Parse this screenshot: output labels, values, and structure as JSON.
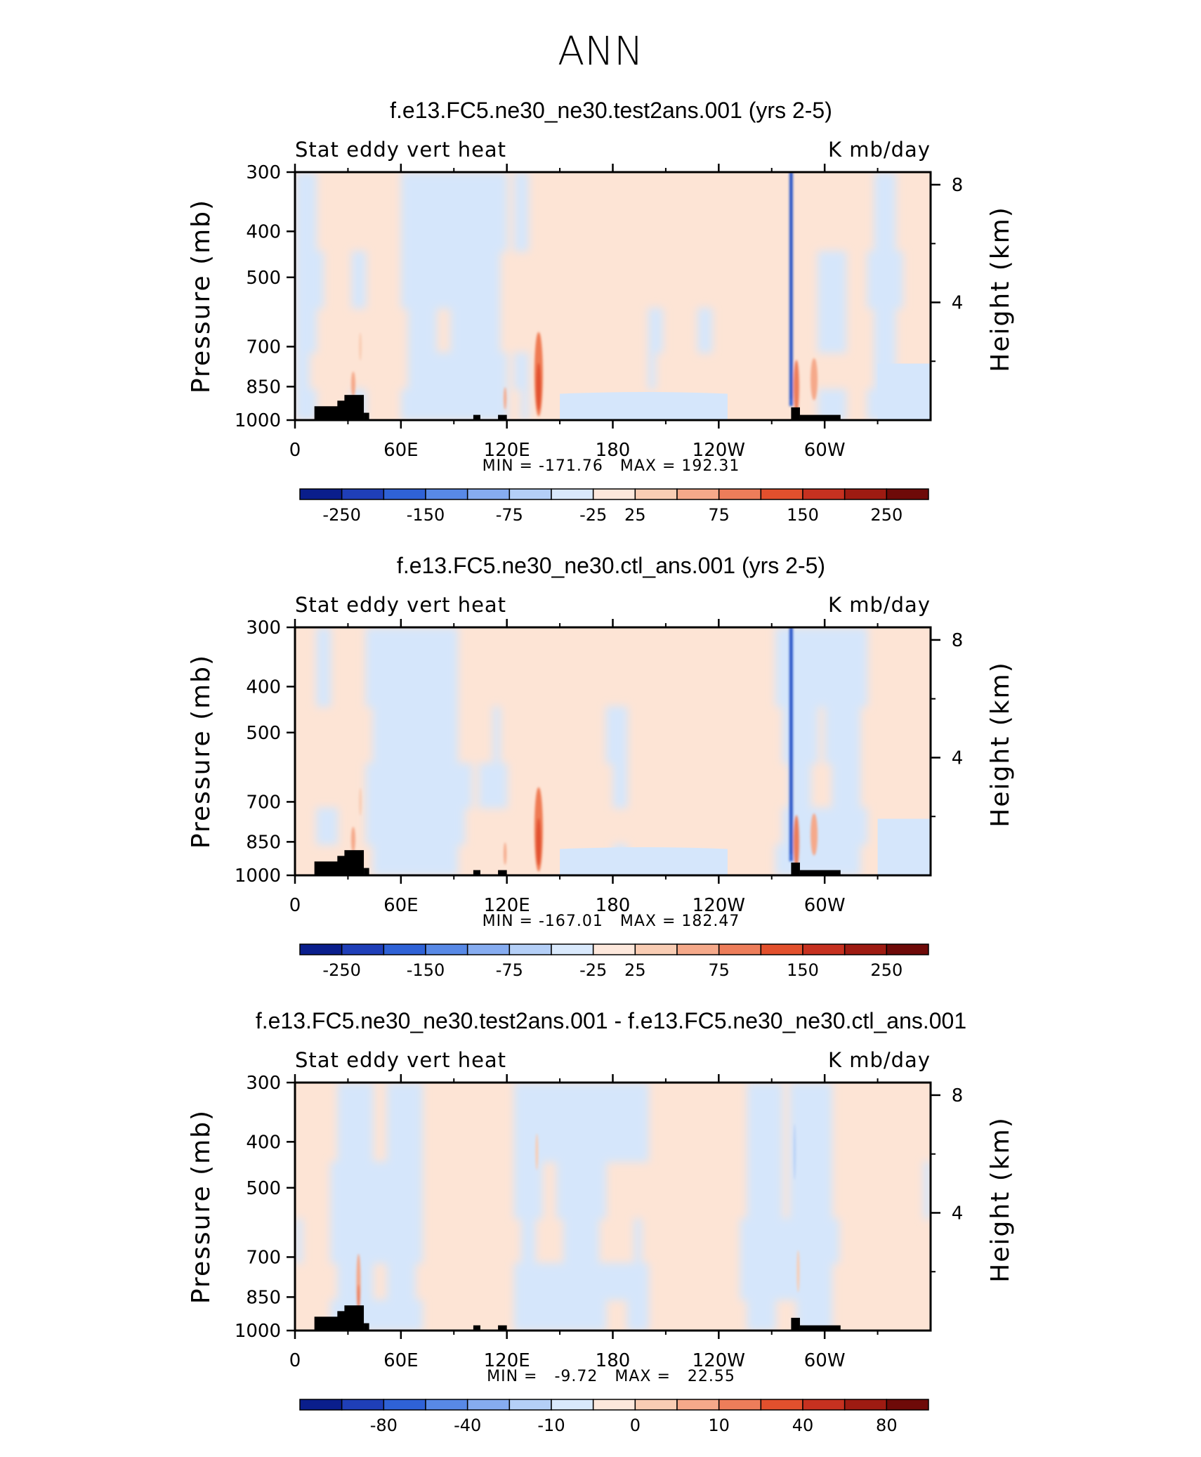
{
  "figure_title": "ANN",
  "chart_data": [
    {
      "type": "heatmap",
      "title": "f.e13.FC5.ne30_ne30.test2ans.001 (yrs 2-5)",
      "left_label": "Stat eddy vert heat",
      "right_label": "K mb/day",
      "ylabel": "Pressure (mb)",
      "ylabel_right": "Height (km)",
      "x_ticks": [
        "0",
        "60E",
        "120E",
        "180",
        "120W",
        "60W"
      ],
      "x_tick_values": [
        0,
        60,
        120,
        180,
        240,
        300
      ],
      "xlim": [
        0,
        360
      ],
      "y_ticks": [
        "300",
        "400",
        "500",
        "700",
        "850",
        "1000"
      ],
      "y_tick_values": [
        300,
        400,
        500,
        700,
        850,
        1000
      ],
      "ylim": [
        1000,
        300
      ],
      "height_ticks": [
        "8",
        "4"
      ],
      "height_tick_values": [
        8,
        4
      ],
      "stats": "MIN = -171.76   MAX = 192.31",
      "min": -171.76,
      "max": 192.31,
      "colorbar": {
        "levels": [
          "-250",
          "-150",
          "-75",
          "-25",
          "25",
          "75",
          "150",
          "250"
        ],
        "colors": [
          "#0a1e8c",
          "#1f3fb8",
          "#2f62d6",
          "#5889e6",
          "#86acf0",
          "#b4cff7",
          "#d9e9fc",
          "#fde8dc",
          "#f9cdb4",
          "#f5a98a",
          "#ed7d5a",
          "#e2502d",
          "#c63120",
          "#9e1b12",
          "#6e0a08"
        ]
      }
    },
    {
      "type": "heatmap",
      "title": "f.e13.FC5.ne30_ne30.ctl_ans.001 (yrs 2-5)",
      "left_label": "Stat eddy vert heat",
      "right_label": "K mb/day",
      "ylabel": "Pressure (mb)",
      "ylabel_right": "Height (km)",
      "x_ticks": [
        "0",
        "60E",
        "120E",
        "180",
        "120W",
        "60W"
      ],
      "x_tick_values": [
        0,
        60,
        120,
        180,
        240,
        300
      ],
      "xlim": [
        0,
        360
      ],
      "y_ticks": [
        "300",
        "400",
        "500",
        "700",
        "850",
        "1000"
      ],
      "y_tick_values": [
        300,
        400,
        500,
        700,
        850,
        1000
      ],
      "ylim": [
        1000,
        300
      ],
      "height_ticks": [
        "8",
        "4"
      ],
      "height_tick_values": [
        8,
        4
      ],
      "stats": "MIN = -167.01   MAX = 182.47",
      "min": -167.01,
      "max": 182.47,
      "colorbar": {
        "levels": [
          "-250",
          "-150",
          "-75",
          "-25",
          "25",
          "75",
          "150",
          "250"
        ],
        "colors": [
          "#0a1e8c",
          "#1f3fb8",
          "#2f62d6",
          "#5889e6",
          "#86acf0",
          "#b4cff7",
          "#d9e9fc",
          "#fde8dc",
          "#f9cdb4",
          "#f5a98a",
          "#ed7d5a",
          "#e2502d",
          "#c63120",
          "#9e1b12",
          "#6e0a08"
        ]
      }
    },
    {
      "type": "heatmap",
      "title": "f.e13.FC5.ne30_ne30.test2ans.001 - f.e13.FC5.ne30_ne30.ctl_ans.001",
      "left_label": "Stat eddy vert heat",
      "right_label": "K mb/day",
      "ylabel": "Pressure (mb)",
      "ylabel_right": "Height (km)",
      "x_ticks": [
        "0",
        "60E",
        "120E",
        "180",
        "120W",
        "60W"
      ],
      "x_tick_values": [
        0,
        60,
        120,
        180,
        240,
        300
      ],
      "xlim": [
        0,
        360
      ],
      "y_ticks": [
        "300",
        "400",
        "500",
        "700",
        "850",
        "1000"
      ],
      "y_tick_values": [
        300,
        400,
        500,
        700,
        850,
        1000
      ],
      "ylim": [
        1000,
        300
      ],
      "height_ticks": [
        "8",
        "4"
      ],
      "height_tick_values": [
        8,
        4
      ],
      "stats": "MIN =   -9.72   MAX =   22.55",
      "min": -9.72,
      "max": 22.55,
      "colorbar": {
        "levels": [
          "-80",
          "-40",
          "-10",
          "0",
          "10",
          "40",
          "80"
        ],
        "colors": [
          "#0a1e8c",
          "#1f3fb8",
          "#2f62d6",
          "#5889e6",
          "#86acf0",
          "#b4cff7",
          "#d9e9fc",
          "#fde8dc",
          "#f9cdb4",
          "#f5a98a",
          "#ed7d5a",
          "#e2502d",
          "#c63120",
          "#9e1b12",
          "#6e0a08"
        ]
      }
    }
  ]
}
